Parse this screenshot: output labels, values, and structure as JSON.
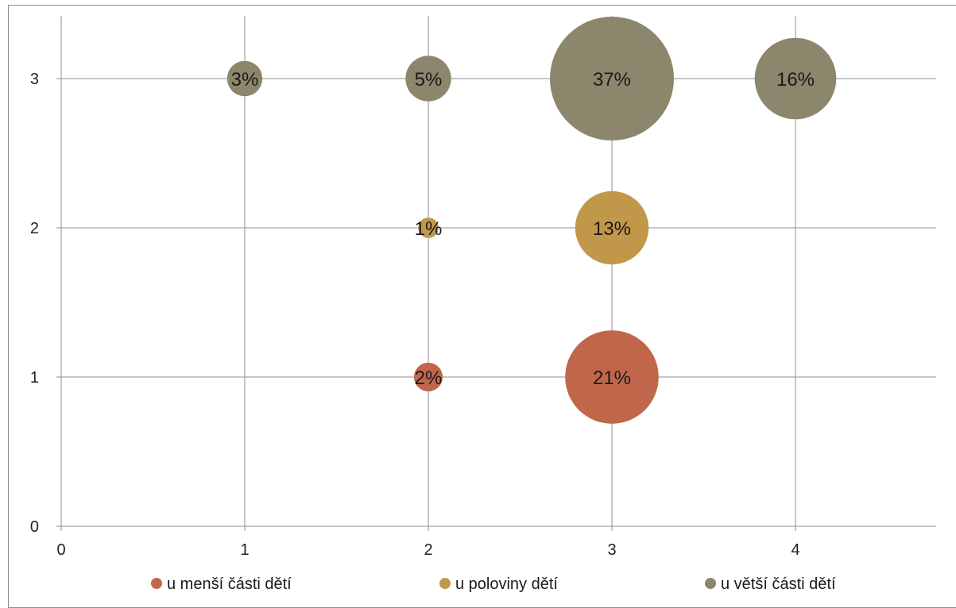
{
  "chart_data": {
    "type": "bubble",
    "x_ticks": [
      "0",
      "1",
      "2",
      "3",
      "4"
    ],
    "y_ticks": [
      "0",
      "1",
      "2",
      "3"
    ],
    "xlim": [
      0,
      4.75
    ],
    "ylim": [
      0,
      3.4
    ],
    "grid": true,
    "legend_position": "bottom",
    "series": [
      {
        "name": "u menší části dětí",
        "color": "#c0674b",
        "points": [
          {
            "x": 2,
            "y": 1,
            "size": 2,
            "label": "2%"
          },
          {
            "x": 3,
            "y": 1,
            "size": 21,
            "label": "21%"
          }
        ]
      },
      {
        "name": "u poloviny dětí",
        "color": "#c1974a",
        "points": [
          {
            "x": 2,
            "y": 2,
            "size": 1,
            "label": "1%"
          },
          {
            "x": 3,
            "y": 2,
            "size": 13,
            "label": "13%"
          }
        ]
      },
      {
        "name": "u větší části dětí",
        "color": "#8b866c",
        "points": [
          {
            "x": 1,
            "y": 3,
            "size": 3,
            "label": "3%"
          },
          {
            "x": 2,
            "y": 3,
            "size": 5,
            "label": "5%"
          },
          {
            "x": 3,
            "y": 3,
            "size": 37,
            "label": "37%"
          },
          {
            "x": 4,
            "y": 3,
            "size": 16,
            "label": "16%"
          }
        ]
      }
    ]
  }
}
